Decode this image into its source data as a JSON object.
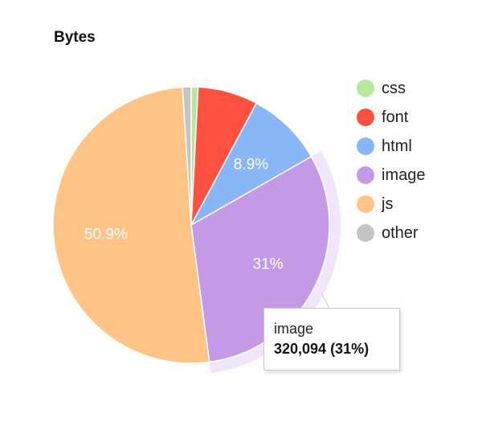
{
  "chart_data": {
    "type": "pie",
    "title": "Bytes",
    "slices": [
      {
        "name": "css",
        "percent": 0.8,
        "label": "",
        "color": "#b5e89a"
      },
      {
        "name": "font",
        "percent": 7.0,
        "label": "",
        "color": "#ff5040"
      },
      {
        "name": "html",
        "percent": 8.9,
        "label": "8.9%",
        "color": "#88b6f6"
      },
      {
        "name": "image",
        "percent": 31.0,
        "label": "31%",
        "color": "#c49ae6"
      },
      {
        "name": "js",
        "percent": 50.9,
        "label": "50.9%",
        "color": "#fdc485"
      },
      {
        "name": "other",
        "percent": 1.0,
        "label": "",
        "color": "#c4c4c4"
      }
    ],
    "legend_position": "right",
    "highlighted_slice": "image"
  },
  "tooltip": {
    "series": "image",
    "value": "320,094 (31%)"
  }
}
